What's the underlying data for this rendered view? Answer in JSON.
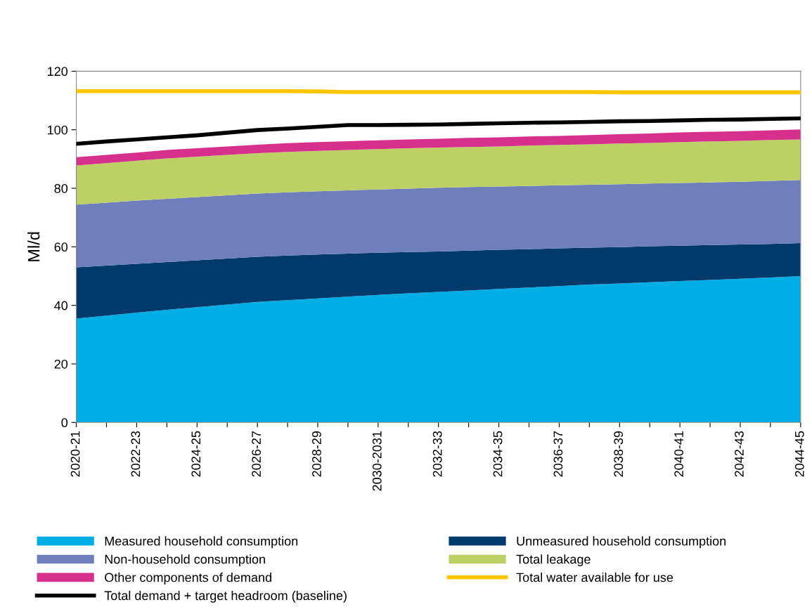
{
  "chart_data": {
    "type": "area",
    "ylabel": "Ml/d",
    "stacked": true,
    "legend": "bottom",
    "grid": false,
    "categories": [
      "2020-21",
      null,
      "2022-23",
      null,
      "2024-25",
      null,
      "2026-27",
      null,
      "2028-29",
      null,
      "2030-2031",
      null,
      "2032-33",
      null,
      "2034-35",
      null,
      "2036-37",
      null,
      "2038-39",
      null,
      "2040-41",
      null,
      "2042-43",
      null,
      "2044-45"
    ],
    "ylim": [
      0,
      120
    ],
    "yticks": [
      0,
      20,
      40,
      60,
      80,
      100,
      120
    ],
    "series": [
      {
        "name": "Measured household consumption",
        "color": "#00aee6",
        "values": [
          35.5,
          36.5,
          37.5,
          38.5,
          39.4,
          40.3,
          41.2,
          41.8,
          42.4,
          43.0,
          43.6,
          44.1,
          44.6,
          45.1,
          45.6,
          46.1,
          46.6,
          47.1,
          47.5,
          47.9,
          48.3,
          48.7,
          49.1,
          49.5,
          50.0
        ]
      },
      {
        "name": "Unmeasured household consumption",
        "color": "#003a6c",
        "values": [
          17.5,
          17.1,
          16.7,
          16.3,
          16.0,
          15.7,
          15.4,
          15.2,
          15.0,
          14.7,
          14.4,
          14.1,
          13.8,
          13.6,
          13.4,
          13.1,
          12.9,
          12.6,
          12.4,
          12.3,
          12.1,
          11.9,
          11.7,
          11.5,
          11.3
        ]
      },
      {
        "name": "Non-household consumption",
        "color": "#6f7fbb",
        "values": [
          21.4,
          21.5,
          21.6,
          21.6,
          21.6,
          21.6,
          21.6,
          21.6,
          21.6,
          21.6,
          21.6,
          21.7,
          21.8,
          21.7,
          21.6,
          21.6,
          21.5,
          21.5,
          21.5,
          21.4,
          21.4,
          21.4,
          21.4,
          21.5,
          21.5
        ]
      },
      {
        "name": "Total leakage",
        "color": "#bcd065",
        "values": [
          13.4,
          13.5,
          13.6,
          13.8,
          13.8,
          13.8,
          13.8,
          13.8,
          13.8,
          13.8,
          13.8,
          13.8,
          13.7,
          13.7,
          13.7,
          13.8,
          13.8,
          13.8,
          13.9,
          13.9,
          14.0,
          14.0,
          14.0,
          14.0,
          13.9
        ]
      },
      {
        "name": "Other components of demand",
        "color": "#d6308c",
        "values": [
          2.8,
          2.8,
          2.8,
          2.9,
          2.9,
          2.9,
          2.9,
          3.0,
          3.0,
          3.0,
          3.0,
          3.0,
          3.0,
          3.1,
          3.1,
          3.1,
          3.1,
          3.2,
          3.2,
          3.2,
          3.3,
          3.3,
          3.3,
          3.3,
          3.4
        ]
      },
      {
        "name": "Total water available for use",
        "type": "line",
        "color": "#ffc600",
        "values": [
          113.2,
          113.2,
          113.2,
          113.2,
          113.2,
          113.2,
          113.2,
          113.2,
          113.1,
          112.9,
          112.9,
          112.9,
          112.9,
          112.9,
          112.9,
          112.9,
          112.9,
          112.9,
          112.8,
          112.8,
          112.8,
          112.8,
          112.8,
          112.8,
          112.8
        ]
      },
      {
        "name": "Total demand + target headroom (baseline)",
        "type": "line",
        "color": "#000000",
        "values": [
          95.2,
          96.0,
          96.7,
          97.4,
          98.1,
          99.0,
          99.9,
          100.4,
          101.0,
          101.6,
          101.6,
          101.7,
          101.8,
          102.0,
          102.2,
          102.4,
          102.5,
          102.7,
          102.9,
          103.0,
          103.2,
          103.4,
          103.5,
          103.7,
          103.9
        ]
      }
    ]
  }
}
